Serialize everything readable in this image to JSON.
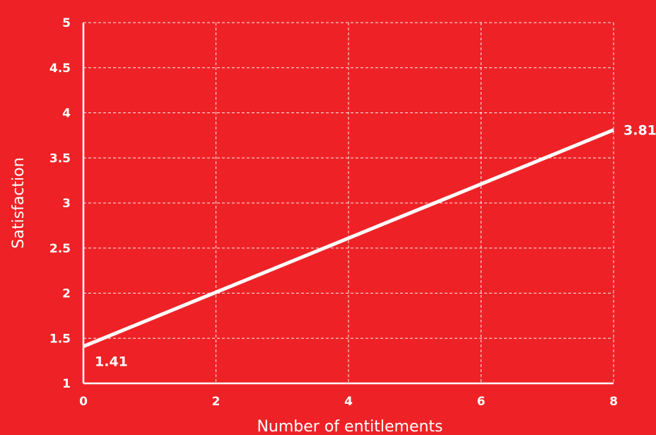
{
  "chart_data": {
    "type": "line",
    "title": "",
    "xlabel": "Number of entitlements",
    "ylabel": "Satisfaction",
    "xlim": [
      0,
      8
    ],
    "ylim": [
      1,
      5
    ],
    "x_ticks": [
      0,
      2,
      4,
      6,
      8
    ],
    "y_ticks": [
      1,
      1.5,
      2,
      2.5,
      3,
      3.5,
      4,
      4.5,
      5
    ],
    "grid": true,
    "grid_style": "dashed",
    "series": [
      {
        "x": [
          0,
          8
        ],
        "y": [
          1.41,
          3.81
        ]
      }
    ],
    "annotations": [
      {
        "x": 0,
        "y": 1.41,
        "text": "1.41"
      },
      {
        "x": 8,
        "y": 3.81,
        "text": "3.81"
      }
    ],
    "colors": {
      "background": "#ee2226",
      "foreground": "#ffffff"
    }
  }
}
